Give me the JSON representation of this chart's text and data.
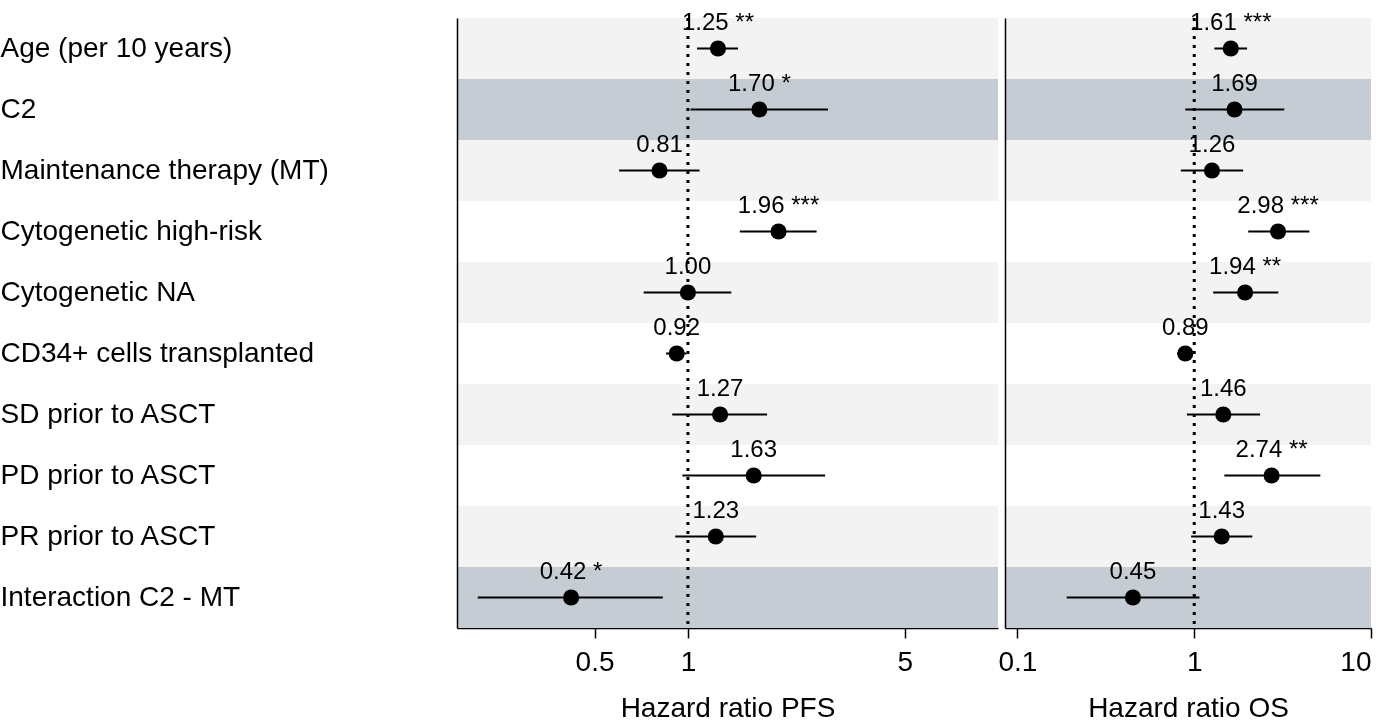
{
  "chart_data": [
    {
      "type": "scatter",
      "orientation": "horizontal",
      "marker": "circle",
      "color": "#000000",
      "log": "x",
      "xlabel": "Hazard ratio PFS",
      "categories": [
        "Age (per 10 years)",
        "C2",
        "Maintenance therapy (MT)",
        "Cytogenetic high-risk",
        "Cytogenetic NA",
        "CD34+ cells transplanted",
        "SD prior to ASCT",
        "PD prior to ASCT",
        "PR prior to ASCT",
        "Interaction C2 - MT"
      ],
      "values": [
        1.25,
        1.7,
        0.81,
        1.96,
        1.0,
        0.92,
        1.27,
        1.63,
        1.23,
        0.42
      ],
      "errors": [
        [
          1.07,
          1.45
        ],
        [
          1.02,
          2.83
        ],
        [
          0.6,
          1.09
        ],
        [
          1.47,
          2.6
        ],
        [
          0.72,
          1.38
        ],
        [
          0.85,
          0.99
        ],
        [
          0.89,
          1.8
        ],
        [
          0.96,
          2.77
        ],
        [
          0.91,
          1.66
        ],
        [
          0.21,
          0.83
        ]
      ],
      "value_labels": [
        "1.25 **",
        "1.70 *",
        "0.81",
        "1.96 ***",
        "1.00",
        "0.92",
        "1.27",
        "1.63",
        "1.23",
        "0.42 *"
      ],
      "xlim": [
        0.18,
        10
      ],
      "xticks": [
        0.5,
        1,
        5
      ],
      "ref_lines": [
        {
          "axis": "x",
          "value": 1,
          "line_style": "dotted"
        }
      ],
      "bands": [
        {
          "axis": "y",
          "from": "Age (per 10 years)",
          "to": "Age (per 10 years)",
          "color": "#f2f3f2"
        },
        {
          "axis": "y",
          "from": "C2",
          "to": "C2",
          "color": "#c6ccd3"
        },
        {
          "axis": "y",
          "from": "Maintenance therapy (MT)",
          "to": "Maintenance therapy (MT)",
          "color": "#f2f3f2"
        },
        {
          "axis": "y",
          "from": "Cytogenetic NA",
          "to": "Cytogenetic NA",
          "color": "#f2f3f2"
        },
        {
          "axis": "y",
          "from": "SD prior to ASCT",
          "to": "SD prior to ASCT",
          "color": "#f2f3f2"
        },
        {
          "axis": "y",
          "from": "PR prior to ASCT",
          "to": "PR prior to ASCT",
          "color": "#f2f3f2"
        },
        {
          "axis": "y",
          "from": "Interaction C2 - MT",
          "to": "Interaction C2 - MT",
          "color": "#c6ccd3"
        }
      ]
    },
    {
      "type": "scatter",
      "orientation": "horizontal",
      "marker": "circle",
      "color": "#000000",
      "log": "x",
      "xlabel": "Hazard ratio OS",
      "tick_labels": "x",
      "categories": [
        "Age (per 10 years)",
        "C2",
        "Maintenance therapy (MT)",
        "Cytogenetic high-risk",
        "Cytogenetic NA",
        "CD34+ cells transplanted",
        "SD prior to ASCT",
        "PD prior to ASCT",
        "PR prior to ASCT",
        "Interaction C2 - MT"
      ],
      "values": [
        1.61,
        1.69,
        1.26,
        2.98,
        1.94,
        0.89,
        1.46,
        2.74,
        1.43,
        0.45
      ],
      "errors": [
        [
          1.3,
          1.99
        ],
        [
          0.89,
          3.23
        ],
        [
          0.84,
          1.89
        ],
        [
          2.02,
          4.48
        ],
        [
          1.28,
          2.99
        ],
        [
          0.8,
          0.97
        ],
        [
          0.91,
          2.36
        ],
        [
          1.48,
          5.17
        ],
        [
          0.96,
          2.13
        ],
        [
          0.19,
          1.07
        ]
      ],
      "value_labels": [
        "1.61 ***",
        "1.69",
        "1.26",
        "2.98 ***",
        "1.94 **",
        "0.89",
        "1.46",
        "2.74 **",
        "1.43",
        "0.45"
      ],
      "xlim": [
        0.085,
        10
      ],
      "xticks": [
        0.1,
        1,
        10
      ],
      "ref_lines": [
        {
          "axis": "x",
          "value": 1,
          "line_style": "dotted"
        }
      ],
      "bands": [
        {
          "axis": "y",
          "from": "Age (per 10 years)",
          "to": "Age (per 10 years)",
          "color": "#f2f3f2"
        },
        {
          "axis": "y",
          "from": "C2",
          "to": "C2",
          "color": "#c6ccd3"
        },
        {
          "axis": "y",
          "from": "Maintenance therapy (MT)",
          "to": "Maintenance therapy (MT)",
          "color": "#f2f3f2"
        },
        {
          "axis": "y",
          "from": "Cytogenetic NA",
          "to": "Cytogenetic NA",
          "color": "#f2f3f2"
        },
        {
          "axis": "y",
          "from": "SD prior to ASCT",
          "to": "SD prior to ASCT",
          "color": "#f2f3f2"
        },
        {
          "axis": "y",
          "from": "PR prior to ASCT",
          "to": "PR prior to ASCT",
          "color": "#f2f3f2"
        },
        {
          "axis": "y",
          "from": "Interaction C2 - MT",
          "to": "Interaction C2 - MT",
          "color": "#c6ccd3"
        }
      ]
    }
  ]
}
